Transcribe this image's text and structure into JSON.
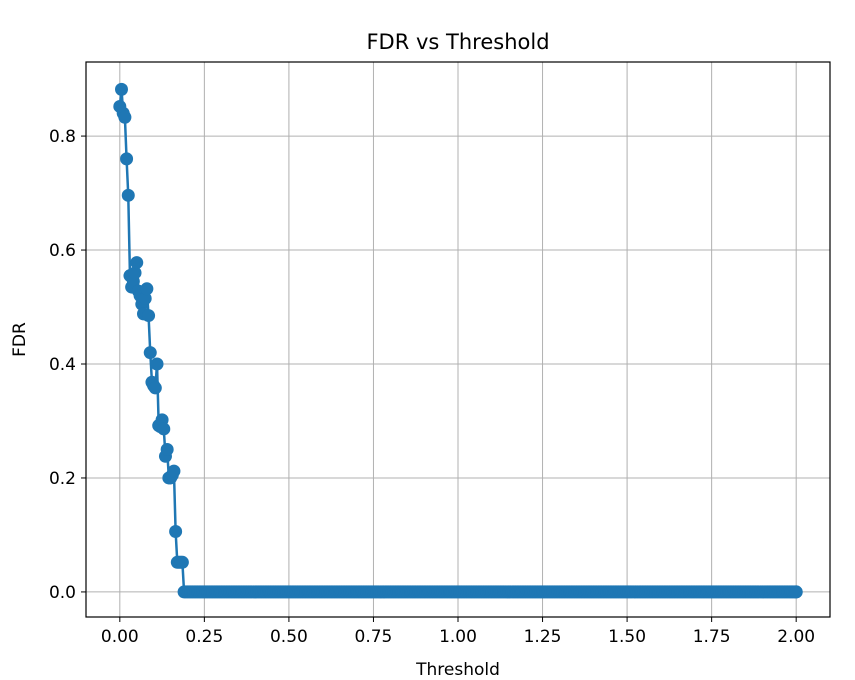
{
  "chart_data": {
    "type": "line",
    "title": "FDR vs Threshold",
    "xlabel": "Threshold",
    "ylabel": "FDR",
    "xlim": [
      -0.1,
      2.1
    ],
    "ylim": [
      -0.044,
      0.93
    ],
    "grid": true,
    "x_ticks": [
      0.0,
      0.25,
      0.5,
      0.75,
      1.0,
      1.25,
      1.5,
      1.75,
      2.0
    ],
    "x_tick_labels": [
      "0.00",
      "0.25",
      "0.50",
      "0.75",
      "1.00",
      "1.25",
      "1.50",
      "1.75",
      "2.00"
    ],
    "y_ticks": [
      0.0,
      0.2,
      0.4,
      0.6,
      0.8
    ],
    "y_tick_labels": [
      "0.0",
      "0.2",
      "0.4",
      "0.6",
      "0.8"
    ],
    "series_color": "#1f77b4",
    "series": [
      {
        "x": [
          0.0,
          0.005,
          0.01,
          0.015,
          0.02,
          0.025,
          0.03,
          0.035,
          0.04,
          0.045,
          0.05,
          0.055,
          0.06,
          0.065,
          0.07,
          0.075,
          0.08,
          0.085,
          0.09,
          0.095,
          0.1,
          0.105,
          0.11,
          0.115,
          0.12,
          0.125,
          0.13,
          0.135,
          0.14,
          0.145,
          0.15,
          0.155,
          0.16,
          0.165,
          0.17,
          0.175,
          0.18,
          0.185,
          0.19,
          0.195,
          0.2,
          0.205,
          2.0
        ],
        "y": [
          0.852,
          0.882,
          0.84,
          0.833,
          0.76,
          0.696,
          0.555,
          0.535,
          0.545,
          0.56,
          0.578,
          0.528,
          0.52,
          0.505,
          0.488,
          0.515,
          0.532,
          0.485,
          0.42,
          0.368,
          0.362,
          0.358,
          0.4,
          0.292,
          0.29,
          0.302,
          0.286,
          0.238,
          0.25,
          0.2,
          0.2,
          0.205,
          0.212,
          0.106,
          0.052,
          0.052,
          0.052,
          0.052,
          0.0,
          0.0,
          0.0,
          0.0,
          0.0
        ]
      }
    ]
  }
}
